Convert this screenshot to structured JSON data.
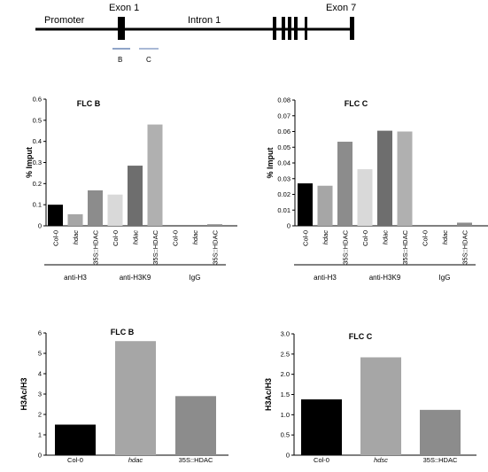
{
  "gene_diagram": {
    "labels": {
      "promoter": "Promoter",
      "exon1": "Exon 1",
      "intron1": "Intron 1",
      "exon7": "Exon 7"
    },
    "amplicons": [
      {
        "label": "B",
        "color": "#8fa4c8"
      },
      {
        "label": "C",
        "color": "#a9b9d6"
      }
    ]
  },
  "chart_data": [
    {
      "type": "bar",
      "title": "FLC B",
      "ylabel": "% Imput",
      "ylim": [
        0,
        0.6
      ],
      "yticks": [
        "0",
        "0.1",
        "0.2",
        "0.3",
        "0.4",
        "0.5",
        "0.6"
      ],
      "groups": [
        "anti-H3",
        "anti-H3K9",
        "IgG"
      ],
      "categories": [
        "Col-0",
        "hdac",
        "35S::HDAC",
        "Col-0",
        "hdac",
        "35S::HDAC",
        "Col-0",
        "hdac",
        "35S::HDAC"
      ],
      "values": [
        0.1,
        0.055,
        0.168,
        0.148,
        0.285,
        0.48,
        0,
        0,
        0.003
      ],
      "colors": [
        "#000000",
        "#a6a6a6",
        "#8c8c8c",
        "#d9d9d9",
        "#6e6e6e",
        "#b0b0b0",
        "#000000",
        "#a6a6a6",
        "#8c8c8c"
      ]
    },
    {
      "type": "bar",
      "title": "FLC C",
      "ylabel": "% Imput",
      "ylim": [
        0,
        0.08
      ],
      "yticks": [
        "0",
        "0.01",
        "0.02",
        "0.03",
        "0.04",
        "0.05",
        "0.06",
        "0.07",
        "0.08"
      ],
      "groups": [
        "anti-H3",
        "anti-H3K9",
        "IgG"
      ],
      "categories": [
        "Col-0",
        "hdac",
        "35S::HDAC",
        "Col-0",
        "hdac",
        "35S::HDAC",
        "Col-0",
        "hdac",
        "35S::HDAC"
      ],
      "values": [
        0.027,
        0.0255,
        0.0535,
        0.036,
        0.0605,
        0.06,
        0,
        0,
        0.002
      ],
      "colors": [
        "#000000",
        "#a6a6a6",
        "#8c8c8c",
        "#d9d9d9",
        "#6e6e6e",
        "#b0b0b0",
        "#000000",
        "#a6a6a6",
        "#8c8c8c"
      ]
    },
    {
      "type": "bar",
      "title": "FLC B",
      "ylabel": "H3Ac/H3",
      "ylim": [
        0,
        6
      ],
      "yticks": [
        "0",
        "1",
        "2",
        "3",
        "4",
        "5",
        "6"
      ],
      "categories": [
        "Col-0",
        "hdac",
        "35S::HDAC"
      ],
      "values": [
        1.5,
        5.6,
        2.9
      ],
      "colors": [
        "#000000",
        "#a6a6a6",
        "#8c8c8c"
      ]
    },
    {
      "type": "bar",
      "title": "FLC C",
      "ylabel": "H3Ac/H3",
      "ylim": [
        0,
        3.0
      ],
      "yticks": [
        "0",
        "0.5",
        "1.0",
        "1.5",
        "2.0",
        "2.5",
        "3.0"
      ],
      "categories": [
        "Col-0",
        "hdsc",
        "35S::HDAC"
      ],
      "values": [
        1.38,
        2.42,
        1.12
      ],
      "colors": [
        "#000000",
        "#a6a6a6",
        "#8c8c8c"
      ]
    }
  ]
}
